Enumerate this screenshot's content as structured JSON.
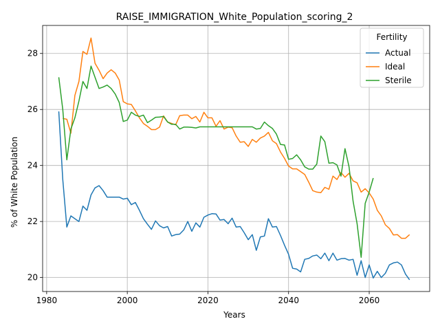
{
  "chart_data": {
    "type": "line",
    "title": "RAISE_IMMIGRATION_White_Population_scoring_2",
    "xlabel": "Years",
    "ylabel": "% of White Population",
    "xlim": [
      1979,
      2075
    ],
    "ylim": [
      19.5,
      29.0
    ],
    "xticks": [
      1980,
      2000,
      2020,
      2040,
      2060
    ],
    "yticks": [
      20,
      22,
      24,
      26,
      28
    ],
    "xtick_labels": [
      "1980",
      "2000",
      "2020",
      "2040",
      "2060"
    ],
    "ytick_labels": [
      "20",
      "22",
      "24",
      "26",
      "28"
    ],
    "grid": true,
    "legend": {
      "title": "Fertility",
      "placement": "top-right"
    },
    "series": [
      {
        "name": "Actual",
        "color": "#1f77b4",
        "x": [
          1983,
          1984,
          1985,
          1986,
          1987,
          1988,
          1989,
          1990,
          1991,
          1992,
          1993,
          1994,
          1995,
          1996,
          1997,
          1998,
          1999,
          2000,
          2001,
          2002,
          2003,
          2004,
          2005,
          2006,
          2007,
          2008,
          2009,
          2010,
          2011,
          2012,
          2013,
          2014,
          2015,
          2016,
          2017,
          2018,
          2019,
          2020,
          2021,
          2022,
          2023,
          2024,
          2025,
          2026,
          2027,
          2028,
          2029,
          2030,
          2031,
          2032,
          2033,
          2034,
          2035,
          2036,
          2037,
          2038,
          2039,
          2040,
          2041,
          2042,
          2043,
          2044,
          2045,
          2046,
          2047,
          2048,
          2049,
          2050,
          2051,
          2052,
          2053,
          2054,
          2055,
          2056,
          2057,
          2058,
          2059,
          2060,
          2061,
          2062,
          2063,
          2064,
          2065,
          2066,
          2067,
          2068,
          2069,
          2070
        ],
        "values": [
          25.93,
          23.5,
          21.8,
          22.2,
          22.1,
          22.0,
          22.55,
          22.4,
          22.95,
          23.2,
          23.28,
          23.1,
          22.87,
          22.87,
          22.87,
          22.87,
          22.8,
          22.83,
          22.6,
          22.68,
          22.4,
          22.1,
          21.9,
          21.72,
          22.02,
          21.85,
          21.77,
          21.82,
          21.48,
          21.53,
          21.55,
          21.7,
          22.0,
          21.65,
          21.95,
          21.8,
          22.15,
          22.23,
          22.28,
          22.27,
          22.05,
          22.07,
          21.92,
          22.12,
          21.8,
          21.82,
          21.6,
          21.35,
          21.53,
          20.97,
          21.45,
          21.48,
          22.1,
          21.8,
          21.82,
          21.5,
          21.15,
          20.83,
          20.33,
          20.3,
          20.2,
          20.65,
          20.68,
          20.77,
          20.8,
          20.67,
          20.87,
          20.6,
          20.87,
          20.62,
          20.67,
          20.68,
          20.62,
          20.65,
          20.08,
          20.6,
          20.0,
          20.45,
          19.98,
          20.22,
          20.0,
          20.15,
          20.45,
          20.52,
          20.55,
          20.45,
          20.12,
          19.92
        ]
      },
      {
        "name": "Ideal",
        "color": "#ff7f0e",
        "x": [
          1984,
          1985,
          1986,
          1987,
          1988,
          1989,
          1990,
          1991,
          1992,
          1993,
          1994,
          1995,
          1996,
          1997,
          1998,
          1999,
          2000,
          2001,
          2002,
          2003,
          2004,
          2005,
          2006,
          2007,
          2008,
          2009,
          2010,
          2011,
          2012,
          2013,
          2014,
          2015,
          2016,
          2017,
          2018,
          2019,
          2020,
          2021,
          2022,
          2023,
          2024,
          2025,
          2026,
          2027,
          2028,
          2029,
          2030,
          2031,
          2032,
          2033,
          2034,
          2035,
          2036,
          2037,
          2038,
          2039,
          2040,
          2041,
          2042,
          2043,
          2044,
          2045,
          2046,
          2047,
          2048,
          2049,
          2050,
          2051,
          2052,
          2053,
          2054,
          2055,
          2056,
          2057,
          2058,
          2059,
          2060,
          2061,
          2062,
          2063,
          2064,
          2065,
          2066,
          2067,
          2068,
          2069,
          2070
        ],
        "values": [
          25.68,
          25.65,
          25.15,
          26.5,
          27.0,
          28.07,
          27.97,
          28.55,
          27.65,
          27.4,
          27.1,
          27.3,
          27.42,
          27.3,
          27.05,
          26.28,
          26.2,
          26.18,
          25.95,
          25.7,
          25.5,
          25.4,
          25.28,
          25.28,
          25.37,
          25.77,
          25.55,
          25.5,
          25.45,
          25.78,
          25.8,
          25.8,
          25.67,
          25.75,
          25.55,
          25.9,
          25.7,
          25.7,
          25.4,
          25.6,
          25.3,
          25.37,
          25.35,
          25.05,
          24.83,
          24.85,
          24.68,
          24.93,
          24.83,
          24.98,
          25.05,
          25.18,
          24.88,
          24.78,
          24.48,
          24.25,
          23.98,
          23.88,
          23.88,
          23.78,
          23.68,
          23.4,
          23.1,
          23.05,
          23.03,
          23.22,
          23.15,
          23.62,
          23.5,
          23.75,
          23.58,
          23.72,
          23.45,
          23.38,
          23.05,
          23.17,
          23.02,
          22.8,
          22.4,
          22.2,
          21.88,
          21.75,
          21.52,
          21.53,
          21.4,
          21.4,
          21.53
        ]
      },
      {
        "name": "Sterile",
        "color": "#2ca02c",
        "x": [
          1983,
          1984,
          1985,
          1986,
          1987,
          1988,
          1989,
          1990,
          1991,
          1992,
          1993,
          1994,
          1995,
          1996,
          1997,
          1998,
          1999,
          2000,
          2001,
          2002,
          2003,
          2004,
          2005,
          2006,
          2007,
          2008,
          2009,
          2010,
          2011,
          2012,
          2013,
          2014,
          2015,
          2016,
          2017,
          2018,
          2019,
          2020,
          2021,
          2022,
          2023,
          2024,
          2025,
          2026,
          2027,
          2028,
          2029,
          2030,
          2031,
          2032,
          2033,
          2034,
          2035,
          2036,
          2037,
          2038,
          2039,
          2040,
          2041,
          2042,
          2043,
          2044,
          2045,
          2046,
          2047,
          2048,
          2049,
          2050,
          2051,
          2052,
          2053,
          2054,
          2055,
          2056,
          2057,
          2058,
          2059,
          2060,
          2061
        ],
        "values": [
          27.15,
          26.0,
          24.2,
          25.3,
          25.7,
          26.3,
          27.0,
          26.75,
          27.55,
          27.15,
          26.75,
          26.8,
          26.87,
          26.75,
          26.55,
          26.25,
          25.57,
          25.62,
          25.9,
          25.8,
          25.75,
          25.8,
          25.53,
          25.62,
          25.72,
          25.73,
          25.75,
          25.55,
          25.47,
          25.47,
          25.3,
          25.37,
          25.37,
          25.36,
          25.34,
          25.38,
          25.38,
          25.38,
          25.38,
          25.38,
          25.38,
          25.38,
          25.38,
          25.38,
          25.38,
          25.38,
          25.38,
          25.38,
          25.38,
          25.3,
          25.32,
          25.55,
          25.42,
          25.32,
          25.12,
          24.75,
          24.73,
          24.22,
          24.25,
          24.38,
          24.2,
          23.95,
          23.87,
          23.87,
          24.05,
          25.05,
          24.85,
          24.08,
          24.1,
          24.02,
          23.62,
          24.6,
          23.95,
          22.72,
          21.92,
          20.72,
          22.65,
          23.05,
          23.55
        ]
      }
    ]
  }
}
